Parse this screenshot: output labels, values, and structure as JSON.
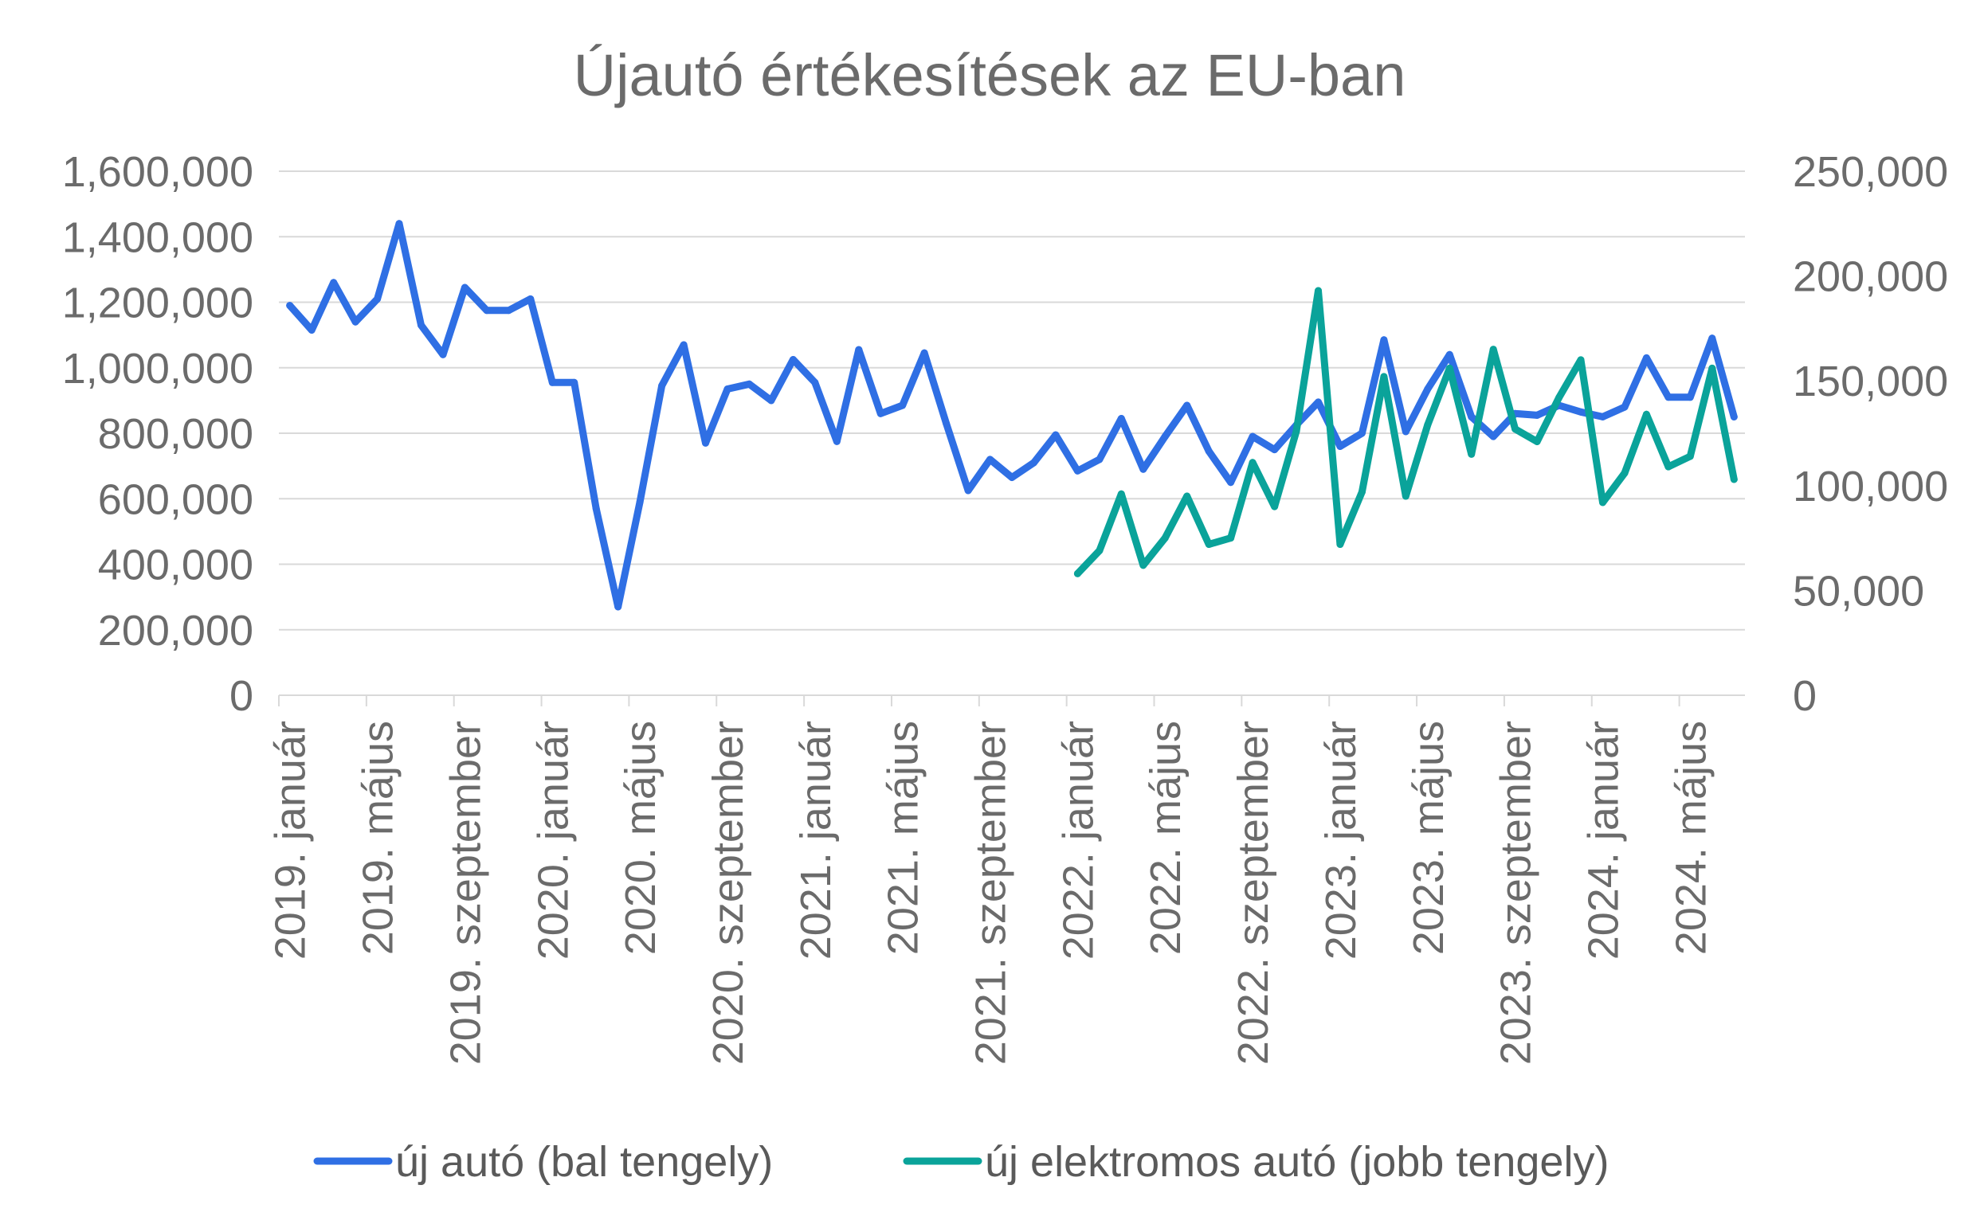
{
  "chart_data": {
    "type": "line",
    "title": "Újautó értékesítések az EU-ban",
    "x_tick_labels": [
      "2019. január",
      "2019. május",
      "2019. szeptember",
      "2020. január",
      "2020. május",
      "2020. szeptember",
      "2021. január",
      "2021. május",
      "2021. szeptember",
      "2022. január",
      "2022. május",
      "2022. szeptember",
      "2023. január",
      "2023. május",
      "2023. szeptember",
      "2024. január",
      "2024. május"
    ],
    "x_tick_index_step": 4,
    "x_count": 67,
    "y_left": {
      "min": 0,
      "max": 1600000,
      "ticks": [
        "1,600,000",
        "1,400,000",
        "1,200,000",
        "1,000,000",
        "800,000",
        "600,000",
        "400,000",
        "200,000",
        "0"
      ]
    },
    "y_right": {
      "min": 0,
      "max": 250000,
      "ticks": [
        "250,000",
        "200,000",
        "150,000",
        "100,000",
        "50,000",
        "0"
      ]
    },
    "grid": true,
    "legend_position": "bottom",
    "series": [
      {
        "name": "új autó (bal tengely)",
        "axis": "left",
        "color": "#2f6fe4",
        "start_index": 0,
        "values": [
          1190000,
          1115000,
          1260000,
          1140000,
          1210000,
          1440000,
          1130000,
          1040000,
          1245000,
          1175000,
          1175000,
          1210000,
          955000,
          955000,
          570000,
          270000,
          590000,
          945000,
          1070000,
          770000,
          935000,
          950000,
          900000,
          1025000,
          955000,
          775000,
          1055000,
          860000,
          885000,
          1045000,
          830000,
          625000,
          720000,
          665000,
          710000,
          795000,
          685000,
          720000,
          845000,
          690000,
          790000,
          885000,
          745000,
          650000,
          790000,
          750000,
          825000,
          895000,
          760000,
          800000,
          1085000,
          805000,
          935000,
          1040000,
          850000,
          790000,
          860000,
          855000,
          885000,
          865000,
          850000,
          880000,
          1030000,
          910000,
          910000,
          1090000,
          850000
        ]
      },
      {
        "name": "új elektromos autó (jobb tengely)",
        "axis": "right",
        "color": "#0aa39a",
        "start_index": 36,
        "values": [
          58000,
          69000,
          96000,
          62000,
          75000,
          95000,
          72000,
          75000,
          111000,
          90000,
          126000,
          193000,
          72000,
          97000,
          152000,
          95000,
          129000,
          156000,
          115000,
          165000,
          127000,
          121000,
          142000,
          160000,
          92000,
          106000,
          134000,
          109000,
          114000,
          156000,
          103000
        ]
      }
    ]
  }
}
